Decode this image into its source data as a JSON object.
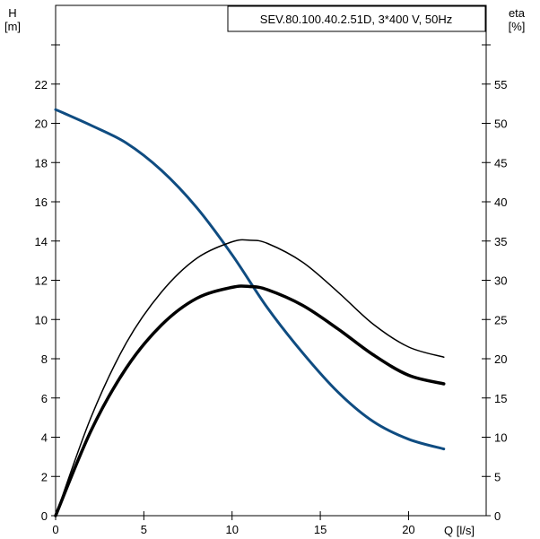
{
  "chart_data": {
    "type": "line",
    "title": "SEV.80.100.40.2.51D, 3*400 V, 50Hz",
    "left_axis": {
      "label_line1": "H",
      "label_line2": "[m]",
      "ylim": [
        0,
        24
      ],
      "ticks": [
        0,
        2,
        4,
        6,
        8,
        10,
        12,
        14,
        16,
        18,
        20,
        22
      ],
      "tick_labels": [
        "0",
        "2",
        "4",
        "6",
        "8",
        "10",
        "12",
        "14",
        "16",
        "18",
        "20",
        "22"
      ]
    },
    "right_axis": {
      "label_line1": "eta",
      "label_line2": "[%]",
      "ylim": [
        0,
        60
      ],
      "ticks": [
        0,
        5,
        10,
        15,
        20,
        25,
        30,
        35,
        40,
        45,
        50,
        55
      ],
      "tick_labels": [
        "0",
        "5",
        "10",
        "15",
        "20",
        "25",
        "30",
        "35",
        "40",
        "45",
        "50",
        "55"
      ]
    },
    "x_axis": {
      "label": "Q [l/s]",
      "xlim": [
        0,
        24.4
      ],
      "ticks": [
        0,
        5,
        10,
        15,
        20
      ],
      "tick_labels": [
        "0",
        "5",
        "10",
        "15",
        "20"
      ]
    },
    "grid": false,
    "series": [
      {
        "axis": "left",
        "color": "#0f4c81",
        "width": 3,
        "x": [
          0,
          2,
          4,
          6,
          8,
          10,
          12,
          14,
          16,
          18,
          20,
          22
        ],
        "y": [
          20.7,
          19.9,
          19.0,
          17.6,
          15.7,
          13.3,
          10.6,
          8.3,
          6.3,
          4.8,
          3.9,
          3.4
        ]
      },
      {
        "axis": "right",
        "color": "#000000",
        "width": 1.5,
        "x": [
          0,
          2,
          4,
          6,
          8,
          10,
          11,
          12,
          14,
          16,
          18,
          20,
          22
        ],
        "y": [
          0,
          12.5,
          22,
          28.5,
          32.8,
          34.9,
          35.1,
          34.7,
          32.3,
          28.5,
          24.4,
          21.5,
          20.2
        ]
      },
      {
        "axis": "right",
        "color": "#000000",
        "width": 3.5,
        "x": [
          0,
          2,
          4,
          6,
          8,
          10,
          11,
          12,
          14,
          16,
          18,
          20,
          22
        ],
        "y": [
          0,
          10.8,
          18.8,
          24.3,
          27.7,
          29.1,
          29.2,
          28.8,
          26.8,
          23.8,
          20.5,
          17.9,
          16.8
        ]
      }
    ],
    "colors": {
      "axis": "#000000",
      "background": "#ffffff"
    }
  }
}
